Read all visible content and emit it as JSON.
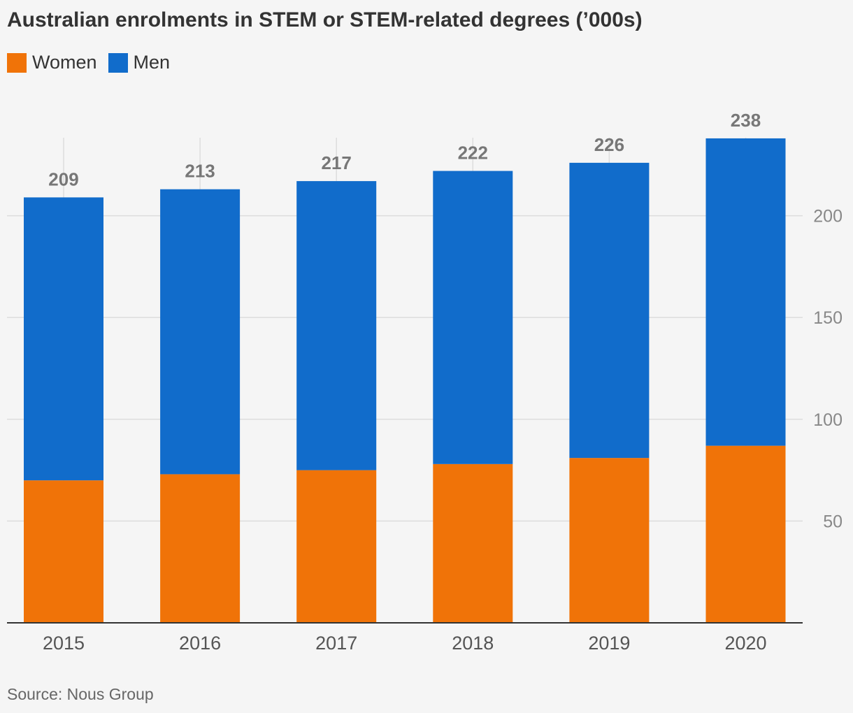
{
  "title": "Australian enrolments in STEM or STEM-related degrees (’000s)",
  "source": "Source: Nous Group",
  "colors": {
    "women": "#f07308",
    "men": "#116ccb",
    "grid": "#dddddd",
    "axis": "#333333",
    "tick": "#888888",
    "label": "#777777"
  },
  "chart_data": {
    "type": "bar",
    "stacked": true,
    "categories": [
      "2015",
      "2016",
      "2017",
      "2018",
      "2019",
      "2020"
    ],
    "series": [
      {
        "name": "Women",
        "values": [
          70,
          73,
          75,
          78,
          81,
          87
        ]
      },
      {
        "name": "Men",
        "values": [
          139,
          140,
          142,
          144,
          145,
          151
        ]
      }
    ],
    "totals": [
      209,
      213,
      217,
      222,
      226,
      238
    ],
    "total_labels": [
      "209",
      "213",
      "217",
      "222",
      "226",
      "238"
    ],
    "y_ticks": [
      50,
      100,
      150,
      200
    ],
    "y_tick_labels": [
      "50",
      "100",
      "150",
      "200"
    ],
    "ylim": [
      0,
      240
    ],
    "y_axis_side": "right",
    "grid": true,
    "legend_position": "top-left",
    "xlabel": "",
    "ylabel": ""
  }
}
